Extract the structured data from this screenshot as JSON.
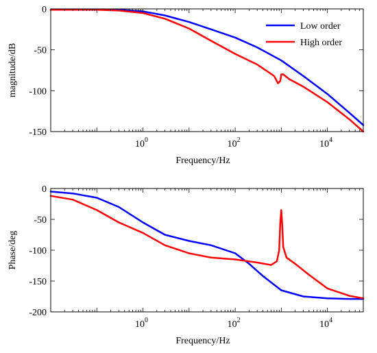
{
  "colors": {
    "low_order": "#0000ff",
    "high_order": "#ff0000",
    "axes": "#000000",
    "background": "#ffffff"
  },
  "chart_data": [
    {
      "type": "line",
      "id": "magnitude",
      "title": "",
      "xlabel": "Frequency/Hz",
      "ylabel": "magnitude/dB",
      "xscale": "log",
      "xlim": [
        0.01,
        60000
      ],
      "ylim": [
        -150,
        0
      ],
      "xticks": [
        1,
        100,
        10000
      ],
      "xtick_labels": [
        "10^0",
        "10^2",
        "10^4"
      ],
      "yticks": [
        0,
        -50,
        -100,
        -150
      ],
      "ytick_labels": [
        "0",
        "-50",
        "-100",
        "-150"
      ],
      "grid": false,
      "legend": {
        "placement": "top-right",
        "entries": [
          "Low order",
          "High order"
        ]
      },
      "series": [
        {
          "name": "Low order",
          "color": "#0000ff",
          "x": [
            0.01,
            0.03,
            0.1,
            0.3,
            1,
            3,
            10,
            30,
            100,
            300,
            1000,
            3000,
            10000,
            30000,
            60000
          ],
          "y": [
            -1,
            -1,
            -1,
            -1,
            -3,
            -8,
            -16,
            -25,
            -35,
            -47,
            -63,
            -82,
            -104,
            -127,
            -142
          ]
        },
        {
          "name": "High order",
          "color": "#ff0000",
          "x": [
            0.01,
            0.03,
            0.1,
            0.3,
            1,
            3,
            10,
            30,
            100,
            300,
            700,
            850,
            950,
            1000,
            1100,
            1500,
            3000,
            10000,
            30000,
            60000
          ],
          "y": [
            -1,
            -1,
            -1,
            -2,
            -5,
            -12,
            -24,
            -39,
            -55,
            -68,
            -82,
            -91,
            -88,
            -80,
            -80,
            -86,
            -95,
            -114,
            -135,
            -150
          ]
        }
      ]
    },
    {
      "type": "line",
      "id": "phase",
      "title": "",
      "xlabel": "Frequency/Hz",
      "ylabel": "Phase/deg",
      "xscale": "log",
      "xlim": [
        0.01,
        60000
      ],
      "ylim": [
        -200,
        0
      ],
      "xticks": [
        1,
        100,
        10000
      ],
      "xtick_labels": [
        "10^0",
        "10^2",
        "10^4"
      ],
      "yticks": [
        0,
        -50,
        -100,
        -150,
        -200
      ],
      "ytick_labels": [
        "0",
        "-50",
        "-100",
        "-150",
        "-200"
      ],
      "grid": false,
      "series": [
        {
          "name": "Low order",
          "color": "#0000ff",
          "x": [
            0.01,
            0.03,
            0.1,
            0.3,
            1,
            3,
            10,
            30,
            100,
            200,
            400,
            1000,
            3000,
            10000,
            30000,
            60000
          ],
          "y": [
            -5,
            -8,
            -15,
            -30,
            -55,
            -75,
            -85,
            -92,
            -105,
            -122,
            -142,
            -165,
            -175,
            -178,
            -179,
            -179
          ]
        },
        {
          "name": "High order",
          "color": "#ff0000",
          "x": [
            0.01,
            0.03,
            0.1,
            0.3,
            1,
            3,
            10,
            30,
            100,
            300,
            600,
            800,
            900,
            950,
            1000,
            1050,
            1100,
            1300,
            2000,
            4000,
            10000,
            30000,
            60000
          ],
          "y": [
            -12,
            -18,
            -35,
            -55,
            -72,
            -92,
            -105,
            -112,
            -115,
            -120,
            -124,
            -118,
            -100,
            -55,
            -35,
            -60,
            -95,
            -112,
            -122,
            -140,
            -162,
            -174,
            -178
          ]
        }
      ]
    }
  ]
}
